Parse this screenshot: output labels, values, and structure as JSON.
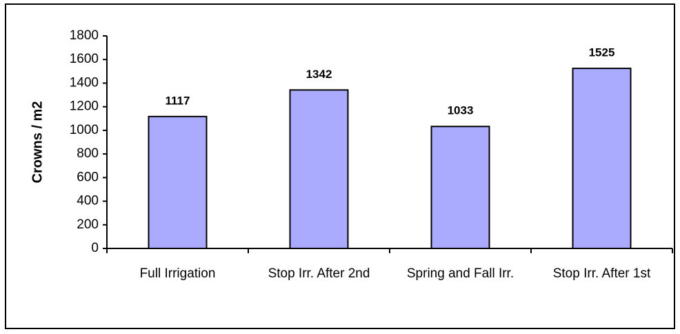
{
  "chart_data": {
    "type": "bar",
    "y_label": "Crowns / m2",
    "categories": [
      "Full Irrigation",
      "Stop Irr. After 2nd",
      "Spring and Fall Irr.",
      "Stop Irr. After 1st"
    ],
    "values": [
      1117,
      1342,
      1033,
      1525
    ],
    "color": "#aaaaff",
    "ylim": [
      0,
      1800
    ],
    "yticks": [
      0,
      200,
      400,
      600,
      800,
      1000,
      1200,
      1400,
      1600,
      1800
    ],
    "grid": false
  }
}
